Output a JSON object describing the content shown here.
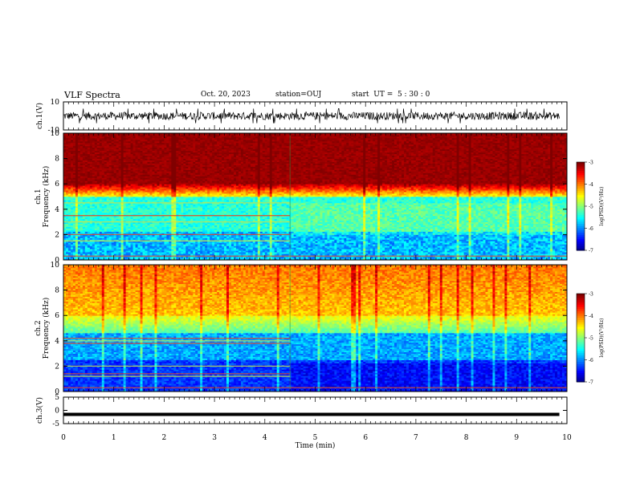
{
  "header": {
    "title": "VLF Spectra",
    "date": "Oct. 20, 2023",
    "station": "station=OUJ",
    "start_ut": "start  UT =  5 : 30 : 0"
  },
  "chart_data": [
    {
      "type": "line",
      "panel": "ch1-waveform",
      "ylabel": "ch.1(V)",
      "ylim": [
        -10,
        10
      ],
      "y_ticks": [
        "10",
        "-10"
      ],
      "xlim": [
        0,
        10
      ],
      "description_values": {
        "amplitude_range": [
          -4,
          4
        ],
        "baseline": 0
      },
      "color": "#000000"
    },
    {
      "type": "heatmap",
      "panel": "ch1-spectrogram",
      "ylabel": "ch.1\nFrequency (kHz)",
      "ylabel_lines": [
        "ch.1",
        "Frequency (kHz)"
      ],
      "ylim": [
        0,
        10
      ],
      "y_ticks": [
        "0",
        "2",
        "4",
        "6",
        "8",
        "10"
      ],
      "xlim": [
        0,
        10
      ],
      "colorbar": {
        "label": "log(PSD)(V²/Hz)",
        "range": [
          -7,
          -3
        ],
        "ticks": [
          "-3",
          "-4",
          "-5",
          "-6",
          "-7"
        ]
      },
      "features": {
        "saturated_band_khz": [
          5.5,
          10
        ],
        "transition_time_min": 4.5,
        "narrowband_lines_khz": [
          0.3,
          1.5,
          2.0,
          3.0,
          3.5,
          4.5
        ]
      }
    },
    {
      "type": "heatmap",
      "panel": "ch2-spectrogram",
      "ylabel_lines": [
        "ch.2",
        "Frequency (kHz)"
      ],
      "ylim": [
        0,
        10
      ],
      "y_ticks": [
        "0",
        "2",
        "4",
        "6",
        "8",
        "10"
      ],
      "xlim": [
        0,
        10
      ],
      "colorbar": {
        "label": "log(PSD)(V²/Hz)",
        "range": [
          -7,
          -3
        ],
        "ticks": [
          "-3",
          "-4",
          "-5",
          "-6",
          "-7"
        ]
      },
      "features": {
        "transition_time_min": 4.5,
        "narrowband_lines_khz": [
          0.3,
          1.2,
          1.4,
          2.0,
          3.8,
          4.0,
          4.2
        ]
      }
    },
    {
      "type": "line",
      "panel": "ch3-waveform",
      "ylabel": "ch.3(V)",
      "ylim": [
        -5,
        5
      ],
      "y_ticks": [
        "5",
        "0",
        "-5"
      ],
      "xlim": [
        0,
        10
      ],
      "xlabel": "Time (min)",
      "x_ticks": [
        "0",
        "1",
        "2",
        "3",
        "4",
        "5",
        "6",
        "7",
        "8",
        "9",
        "10"
      ],
      "description_values": {
        "constant_value": -1.5
      },
      "color": "#000000"
    }
  ]
}
